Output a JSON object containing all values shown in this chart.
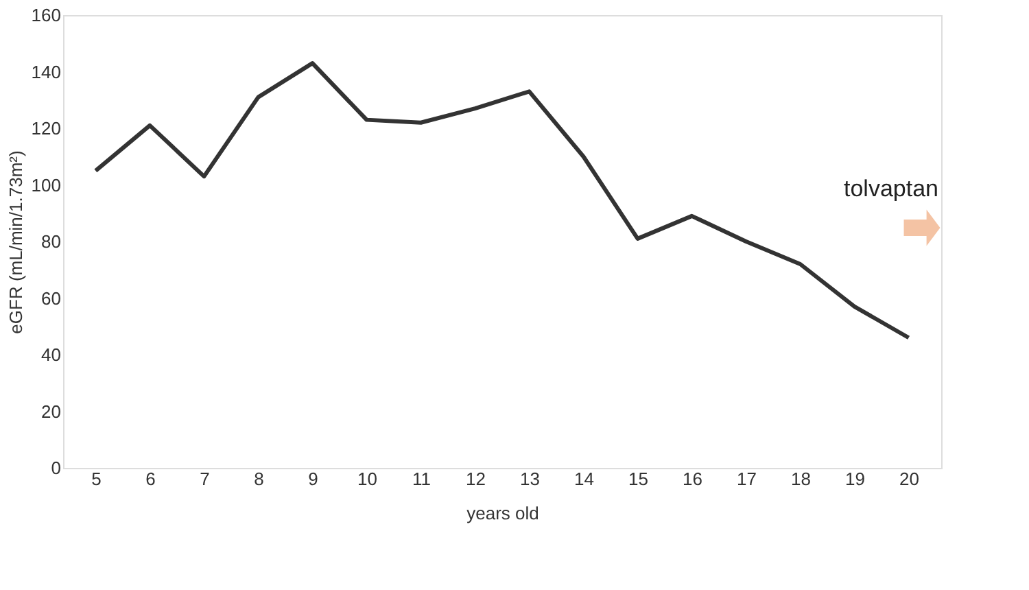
{
  "chart_data": {
    "type": "line",
    "xlabel": "years old",
    "ylabel": "eGFR (mL/min/1.73m²)",
    "categories": [
      "5",
      "6",
      "7",
      "8",
      "9",
      "10",
      "11",
      "12",
      "13",
      "14",
      "15",
      "16",
      "17",
      "18",
      "19",
      "20"
    ],
    "series": [
      {
        "color": "#333333",
        "values": [
          105,
          121,
          103,
          131,
          143,
          123,
          122,
          127,
          133,
          110,
          81,
          89,
          80,
          72,
          57,
          46
        ]
      }
    ],
    "ylim": [
      0,
      160
    ],
    "yticks": [
      0,
      20,
      40,
      60,
      80,
      100,
      120,
      140,
      160
    ],
    "grid": false,
    "marker": "none",
    "line_style": "solid",
    "annotations": [
      "tolvaptan"
    ]
  }
}
